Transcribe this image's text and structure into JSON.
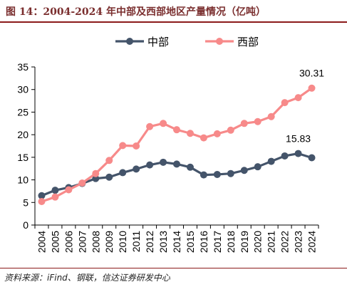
{
  "header": {
    "title": "图 14：2004-2024 年中部及西部地区产量情况（亿吨）"
  },
  "footer": {
    "source": "资料来源：iFind、钢联，信达证券研发中心"
  },
  "chart_data": {
    "type": "line",
    "x": [
      "2004",
      "2005",
      "2006",
      "2007",
      "2008",
      "2009",
      "2010",
      "2011",
      "2012",
      "2013",
      "2014",
      "2015",
      "2016",
      "2017",
      "2018",
      "2019",
      "2020",
      "2021",
      "2022",
      "2023",
      "2024"
    ],
    "ylim": [
      0,
      35
    ],
    "yticks": [
      0,
      5,
      10,
      15,
      20,
      25,
      30,
      35
    ],
    "legend_position": "top-center",
    "series": [
      {
        "name": "中部",
        "color": "#44546a",
        "values": [
          6.5,
          7.7,
          8.3,
          9.2,
          10.3,
          10.6,
          11.6,
          12.4,
          13.3,
          13.9,
          13.5,
          12.8,
          11.1,
          11.2,
          11.4,
          12.1,
          12.9,
          14.1,
          15.3,
          15.83,
          14.9
        ]
      },
      {
        "name": "西部",
        "color": "#f78a8a",
        "values": [
          5.2,
          6.2,
          7.8,
          9.3,
          11.4,
          14.3,
          17.6,
          17.5,
          21.8,
          22.5,
          21.1,
          20.3,
          19.3,
          20.2,
          21.0,
          22.5,
          22.9,
          24.0,
          27.1,
          28.2,
          30.31
        ]
      }
    ],
    "annotations": [
      {
        "series": "中部",
        "x": "2023",
        "text": "15.83"
      },
      {
        "series": "西部",
        "x": "2024",
        "text": "30.31"
      }
    ]
  }
}
